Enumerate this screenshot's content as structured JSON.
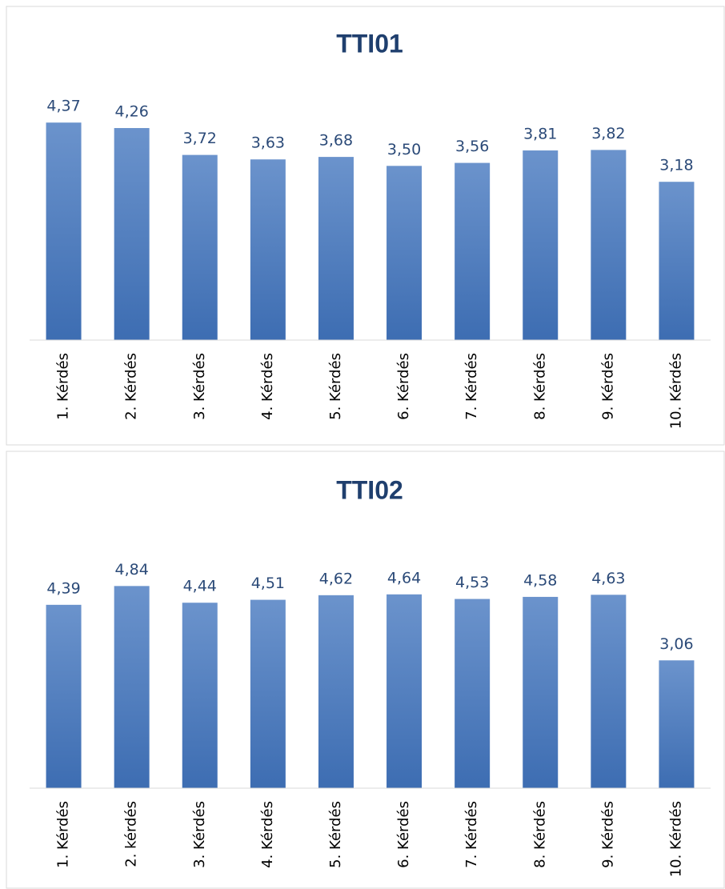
{
  "chart_data": [
    {
      "type": "bar",
      "title": "TTI01",
      "categories": [
        "1. Kérdés",
        "2. Kérdés",
        "3. Kérdés",
        "4. Kérdés",
        "5. Kérdés",
        "6. Kérdés",
        "7. Kérdés",
        "8. Kérdés",
        "9. Kérdés",
        "10. Kérdés"
      ],
      "values": [
        4.37,
        4.26,
        3.72,
        3.63,
        3.68,
        3.5,
        3.56,
        3.81,
        3.82,
        3.18
      ],
      "value_labels": [
        "4,37",
        "4,26",
        "3,72",
        "3,63",
        "3,68",
        "3,50",
        "3,56",
        "3,81",
        "3,82",
        "3,18"
      ],
      "color": "#4a7cc0",
      "ylim": [
        0,
        5
      ]
    },
    {
      "type": "bar",
      "title": "TTI02",
      "categories": [
        "1. Kérdés",
        "2. kérdés",
        "3. Kérdés",
        "4. Kérdés",
        "5. Kérdés",
        "6. Kérdés",
        "7. Kérdés",
        "8. Kérdés",
        "9. Kérdés",
        "10. Kérdés"
      ],
      "values": [
        4.39,
        4.84,
        4.44,
        4.51,
        4.62,
        4.64,
        4.53,
        4.58,
        4.63,
        3.06
      ],
      "value_labels": [
        "4,39",
        "4,84",
        "4,44",
        "4,51",
        "4,62",
        "4,64",
        "4,53",
        "4,58",
        "4,63",
        "3,06"
      ],
      "color": "#4a7cc0",
      "ylim": [
        0,
        5
      ]
    }
  ]
}
